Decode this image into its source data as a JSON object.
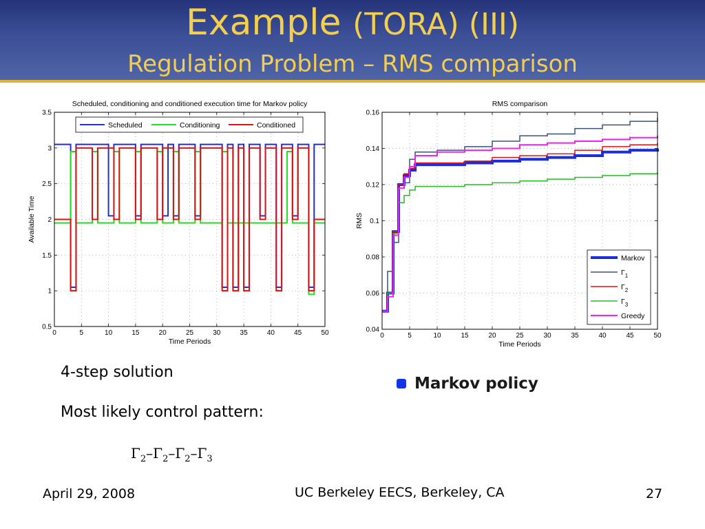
{
  "slide": {
    "title_main": "Example",
    "title_paren": "(TORA) (III)",
    "subtitle": "Regulation Problem – RMS comparison",
    "text1": "4-step solution",
    "text2": "Most likely control pattern:",
    "pattern": "Γ2–Γ2–Γ2–Γ3",
    "legend_label": "Markov policy",
    "footer_left": "April 29, 2008",
    "footer_center": "UC Berkeley EECS, Berkeley, CA",
    "footer_right": "27"
  },
  "chart_data": [
    {
      "type": "line",
      "step": true,
      "title": "Scheduled, conditioning and conditioned execution time for Markov policy",
      "xlabel": "Time Periods",
      "ylabel": "Available Time",
      "xlim": [
        0,
        50
      ],
      "ylim": [
        0.5,
        3.5
      ],
      "xticks": [
        0,
        5,
        10,
        15,
        20,
        25,
        30,
        35,
        40,
        45,
        50
      ],
      "yticks": [
        0.5,
        1,
        1.5,
        2,
        2.5,
        3,
        3.5
      ],
      "legend_position": "top",
      "series": [
        {
          "name": "Scheduled",
          "color": "#1f2fd0",
          "x": [
            0,
            3,
            4,
            10,
            11,
            15,
            16,
            20,
            21,
            22,
            23,
            26,
            27,
            31,
            32,
            33,
            34,
            35,
            36,
            38,
            39,
            41,
            42,
            44,
            45,
            47,
            48,
            50
          ],
          "y": [
            3.05,
            1.05,
            3.05,
            2.05,
            3.05,
            2.05,
            3.05,
            2.05,
            3.05,
            2.05,
            3.05,
            2.05,
            3.05,
            1.05,
            3.05,
            1.05,
            3.05,
            1.05,
            3.05,
            2.05,
            3.05,
            1.05,
            3.05,
            2.05,
            3.05,
            1.05,
            3.05,
            3.05
          ]
        },
        {
          "name": "Conditioning",
          "color": "#22dd22",
          "x": [
            0,
            3,
            4,
            7,
            8,
            11,
            12,
            15,
            16,
            19,
            20,
            22,
            23,
            26,
            27,
            31,
            32,
            43,
            44,
            47,
            48,
            50
          ],
          "y": [
            1.95,
            2.95,
            1.95,
            2.95,
            1.95,
            2.95,
            1.95,
            2.95,
            1.95,
            2.95,
            1.95,
            2.95,
            1.95,
            2.95,
            1.95,
            2.95,
            1.95,
            2.95,
            1.95,
            0.95,
            1.95,
            1.95
          ],
          "note": "second y-value applies from x[1]"
        },
        {
          "name": "Conditioned",
          "color": "#dd1111",
          "x": [
            0,
            3,
            4,
            7,
            8,
            11,
            12,
            15,
            16,
            19,
            20,
            22,
            23,
            26,
            27,
            31,
            32,
            33,
            34,
            35,
            36,
            38,
            39,
            41,
            42,
            44,
            45,
            47,
            48,
            50
          ],
          "y": [
            2.0,
            1.0,
            3.0,
            2.0,
            3.0,
            2.0,
            3.0,
            2.0,
            3.0,
            2.0,
            3.0,
            2.0,
            3.0,
            2.0,
            3.0,
            1.0,
            3.0,
            1.0,
            3.0,
            1.0,
            3.0,
            2.0,
            3.0,
            1.0,
            3.0,
            2.0,
            3.0,
            1.0,
            2.0,
            2.0
          ]
        }
      ]
    },
    {
      "type": "line",
      "step": true,
      "title": "RMS comparison",
      "xlabel": "Time Periods",
      "ylabel": "RMS",
      "xlim": [
        0,
        50
      ],
      "ylim": [
        0.04,
        0.16
      ],
      "xticks": [
        0,
        5,
        10,
        15,
        20,
        25,
        30,
        35,
        40,
        45,
        50
      ],
      "yticks": [
        0.04,
        0.06,
        0.08,
        0.1,
        0.12,
        0.14,
        0.16
      ],
      "legend_position": "bottom-right",
      "series": [
        {
          "name": "Markov",
          "name_main": "Markov",
          "name_sub": "",
          "color": "#1a2ee0",
          "width": 4,
          "x": [
            0,
            1,
            2,
            3,
            4,
            5,
            6,
            10,
            15,
            20,
            25,
            30,
            35,
            40,
            45,
            50
          ],
          "y": [
            0.05,
            0.06,
            0.094,
            0.12,
            0.125,
            0.128,
            0.131,
            0.131,
            0.132,
            0.133,
            0.134,
            0.135,
            0.136,
            0.138,
            0.139,
            0.14
          ]
        },
        {
          "name": "Γ1",
          "name_main": "Γ",
          "name_sub": "1",
          "color": "#3a5078",
          "width": 1.5,
          "x": [
            0,
            1,
            2,
            3,
            4,
            5,
            6,
            10,
            15,
            20,
            25,
            30,
            35,
            40,
            45,
            50
          ],
          "y": [
            0.05,
            0.072,
            0.088,
            0.12,
            0.121,
            0.134,
            0.138,
            0.139,
            0.141,
            0.144,
            0.147,
            0.148,
            0.151,
            0.153,
            0.155,
            0.157
          ]
        },
        {
          "name": "Γ2",
          "name_main": "Γ",
          "name_sub": "2",
          "color": "#dd1111",
          "width": 1.5,
          "x": [
            0,
            1,
            2,
            3,
            4,
            5,
            6,
            10,
            15,
            20,
            25,
            30,
            35,
            40,
            45,
            50
          ],
          "y": [
            0.05,
            0.06,
            0.094,
            0.12,
            0.126,
            0.129,
            0.132,
            0.132,
            0.133,
            0.135,
            0.136,
            0.137,
            0.139,
            0.141,
            0.142,
            0.143
          ]
        },
        {
          "name": "Γ3",
          "name_main": "Γ",
          "name_sub": "3",
          "color": "#22bb22",
          "width": 1.5,
          "x": [
            0,
            1,
            2,
            3,
            4,
            5,
            6,
            10,
            15,
            20,
            25,
            30,
            35,
            40,
            45,
            50
          ],
          "y": [
            0.05,
            0.06,
            0.093,
            0.11,
            0.114,
            0.117,
            0.119,
            0.119,
            0.12,
            0.121,
            0.122,
            0.123,
            0.124,
            0.125,
            0.126,
            0.127
          ]
        },
        {
          "name": "Greedy",
          "name_main": "Greedy",
          "name_sub": "",
          "color": "#ee22ee",
          "width": 2,
          "x": [
            0,
            1,
            2,
            3,
            4,
            5,
            6,
            10,
            15,
            20,
            25,
            30,
            35,
            40,
            45,
            50
          ],
          "y": [
            0.05,
            0.058,
            0.092,
            0.118,
            0.124,
            0.13,
            0.136,
            0.138,
            0.139,
            0.14,
            0.142,
            0.143,
            0.144,
            0.145,
            0.146,
            0.147
          ]
        }
      ]
    }
  ]
}
